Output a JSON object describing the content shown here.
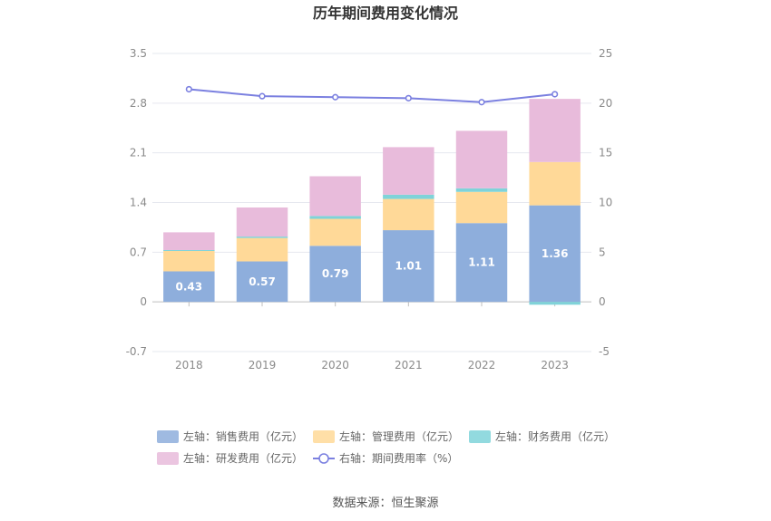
{
  "chart_data": {
    "type": "bar",
    "title": "历年期间费用变化情况",
    "categories": [
      "2018",
      "2019",
      "2020",
      "2021",
      "2022",
      "2023"
    ],
    "y_left": {
      "ticks": [
        3.5,
        2.8,
        2.1,
        1.4,
        0.7,
        0,
        -0.7
      ],
      "range": [
        -0.7,
        3.5
      ]
    },
    "y_right": {
      "ticks": [
        25,
        20,
        15,
        10,
        5,
        0,
        -5
      ],
      "range": [
        -5,
        25
      ]
    },
    "stacked": true,
    "series": [
      {
        "name": "左轴：销售费用（亿元）",
        "axis": "left",
        "type": "bar",
        "color": "#8eaedc",
        "values": [
          0.43,
          0.57,
          0.79,
          1.01,
          1.11,
          1.36
        ],
        "labels": [
          "0.43",
          "0.57",
          "0.79",
          "1.01",
          "1.11",
          "1.36"
        ]
      },
      {
        "name": "左轴：管理费用（亿元）",
        "axis": "left",
        "type": "bar",
        "color": "#ffd998",
        "values": [
          0.29,
          0.33,
          0.38,
          0.44,
          0.44,
          0.61
        ]
      },
      {
        "name": "左轴：财务费用（亿元）",
        "axis": "left",
        "type": "bar",
        "color": "#7fd3d9",
        "values": [
          0.01,
          0.02,
          0.04,
          0.06,
          0.05,
          -0.04
        ]
      },
      {
        "name": "左轴：研发费用（亿元）",
        "axis": "left",
        "type": "bar",
        "color": "#e8bbdb",
        "values": [
          0.25,
          0.41,
          0.56,
          0.67,
          0.81,
          0.89
        ]
      },
      {
        "name": "右轴：期间费用率（%）",
        "axis": "right",
        "type": "line",
        "color": "#7b80e0",
        "values": [
          21.4,
          20.7,
          20.6,
          20.5,
          20.1,
          20.9
        ]
      }
    ],
    "legend_position": "bottom",
    "grid": true
  },
  "source": "数据来源：恒生聚源"
}
